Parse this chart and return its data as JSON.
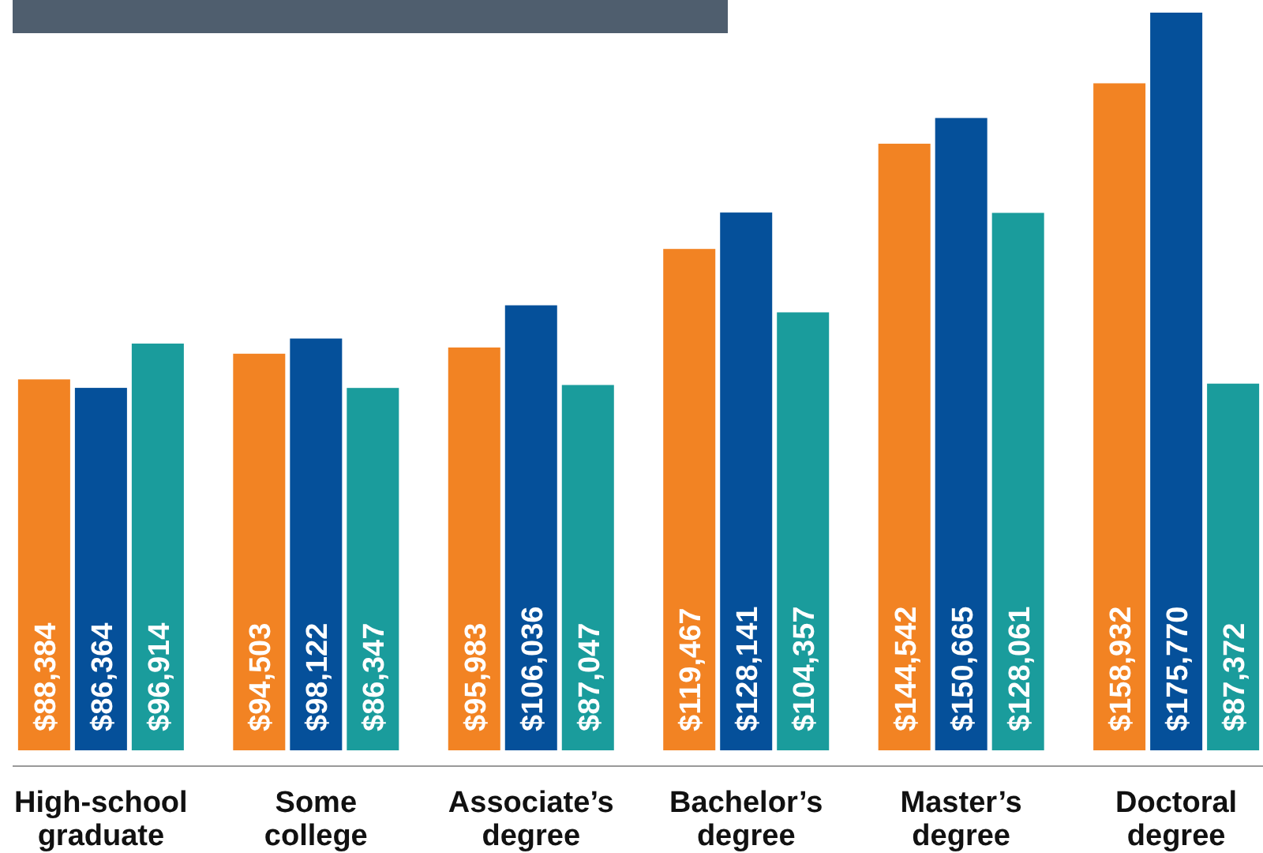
{
  "chart_data": {
    "type": "bar",
    "data_labels": true,
    "categories": [
      "High-school graduate",
      "Some college",
      "Associate’s degree",
      "Bachelor’s degree",
      "Master’s degree",
      "Doctoral degree"
    ],
    "series": [
      {
        "color": "#f28323",
        "values": [
          88384,
          94503,
          95983,
          119467,
          144542,
          158932
        ],
        "value_labels": [
          "$88,384",
          "$94,503",
          "$95,983",
          "$119,467",
          "$144,542",
          "$158,932"
        ]
      },
      {
        "color": "#05509a",
        "values": [
          86364,
          98122,
          106036,
          128141,
          150665,
          175770
        ],
        "value_labels": [
          "$86,364",
          "$98,122",
          "$106,036",
          "$128,141",
          "$150,665",
          "$175,770"
        ]
      },
      {
        "color": "#1a9c9c",
        "values": [
          96914,
          86347,
          87047,
          104357,
          128061,
          87372
        ],
        "value_labels": [
          "$96,914",
          "$86,347",
          "$87,047",
          "$104,357",
          "$128,061",
          "$87,372"
        ]
      }
    ]
  }
}
